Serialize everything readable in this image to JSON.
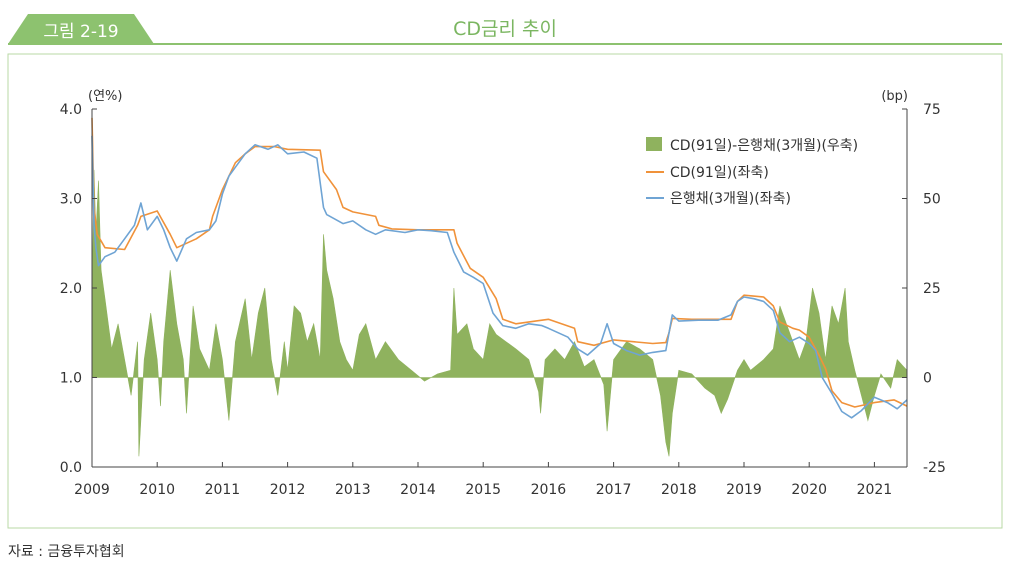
{
  "header": {
    "figure_label": "그림 2-19",
    "title": "CD금리 추이"
  },
  "source": "자료 : 금융투자협회",
  "colors": {
    "header_green": "#8dc26f",
    "title_green": "#7bb661",
    "frame": "#b9d9a6",
    "spread_fill": "#8fb25e",
    "cd_line": "#f0923a",
    "bank_line": "#6fa4d4"
  },
  "chart_data": {
    "type": "line",
    "title": "CD금리 추이",
    "y_left": {
      "unit": "(연%)",
      "range": [
        0.0,
        4.0
      ],
      "ticks": [
        "4.0",
        "3.0",
        "2.0",
        "1.0",
        "0.0"
      ]
    },
    "y_right": {
      "unit": "(bp)",
      "range": [
        -25,
        75
      ],
      "ticks": [
        "75",
        "50",
        "25",
        "0",
        "-25"
      ]
    },
    "x": {
      "range": [
        2009.0,
        2021.5
      ],
      "ticks": [
        "2009",
        "2010",
        "2011",
        "2012",
        "2013",
        "2014",
        "2015",
        "2016",
        "2017",
        "2018",
        "2019",
        "2020",
        "2021"
      ]
    },
    "grid": false,
    "legend_position": "top-right",
    "legend": [
      "CD(91일)-은행채(3개월)(우축)",
      "CD(91일)(좌축)",
      "은행채(3개월)(좌축)"
    ],
    "series": [
      {
        "name": "CD(91일)(좌축)",
        "axis": "left",
        "kind": "line",
        "points": [
          [
            2009.0,
            3.9
          ],
          [
            2009.03,
            2.9
          ],
          [
            2009.08,
            2.6
          ],
          [
            2009.2,
            2.45
          ],
          [
            2009.5,
            2.43
          ],
          [
            2009.7,
            2.7
          ],
          [
            2009.75,
            2.8
          ],
          [
            2010.0,
            2.86
          ],
          [
            2010.2,
            2.6
          ],
          [
            2010.3,
            2.45
          ],
          [
            2010.6,
            2.55
          ],
          [
            2010.8,
            2.65
          ],
          [
            2010.85,
            2.8
          ],
          [
            2011.0,
            3.1
          ],
          [
            2011.2,
            3.4
          ],
          [
            2011.35,
            3.5
          ],
          [
            2011.5,
            3.58
          ],
          [
            2011.8,
            3.58
          ],
          [
            2012.0,
            3.55
          ],
          [
            2012.5,
            3.54
          ],
          [
            2012.55,
            3.3
          ],
          [
            2012.75,
            3.1
          ],
          [
            2012.85,
            2.9
          ],
          [
            2013.0,
            2.85
          ],
          [
            2013.35,
            2.8
          ],
          [
            2013.4,
            2.7
          ],
          [
            2013.6,
            2.66
          ],
          [
            2014.0,
            2.65
          ],
          [
            2014.3,
            2.65
          ],
          [
            2014.55,
            2.65
          ],
          [
            2014.6,
            2.5
          ],
          [
            2014.8,
            2.22
          ],
          [
            2015.0,
            2.12
          ],
          [
            2015.2,
            1.88
          ],
          [
            2015.3,
            1.65
          ],
          [
            2015.5,
            1.6
          ],
          [
            2015.8,
            1.63
          ],
          [
            2016.0,
            1.65
          ],
          [
            2016.4,
            1.55
          ],
          [
            2016.45,
            1.4
          ],
          [
            2016.7,
            1.36
          ],
          [
            2017.0,
            1.42
          ],
          [
            2017.3,
            1.4
          ],
          [
            2017.6,
            1.38
          ],
          [
            2017.8,
            1.39
          ],
          [
            2017.85,
            1.5
          ],
          [
            2017.9,
            1.66
          ],
          [
            2018.2,
            1.65
          ],
          [
            2018.5,
            1.65
          ],
          [
            2018.8,
            1.65
          ],
          [
            2018.9,
            1.85
          ],
          [
            2019.0,
            1.92
          ],
          [
            2019.3,
            1.9
          ],
          [
            2019.45,
            1.8
          ],
          [
            2019.55,
            1.62
          ],
          [
            2019.75,
            1.55
          ],
          [
            2019.85,
            1.53
          ],
          [
            2020.0,
            1.45
          ],
          [
            2020.15,
            1.25
          ],
          [
            2020.25,
            1.1
          ],
          [
            2020.35,
            0.85
          ],
          [
            2020.5,
            0.72
          ],
          [
            2020.7,
            0.67
          ],
          [
            2021.0,
            0.72
          ],
          [
            2021.3,
            0.75
          ],
          [
            2021.5,
            0.68
          ]
        ]
      },
      {
        "name": "은행채(3개월)(좌축)",
        "axis": "left",
        "kind": "line",
        "points": [
          [
            2009.0,
            3.7
          ],
          [
            2009.03,
            2.7
          ],
          [
            2009.06,
            2.45
          ],
          [
            2009.1,
            2.25
          ],
          [
            2009.2,
            2.35
          ],
          [
            2009.35,
            2.4
          ],
          [
            2009.5,
            2.55
          ],
          [
            2009.65,
            2.7
          ],
          [
            2009.75,
            2.95
          ],
          [
            2009.85,
            2.65
          ],
          [
            2010.0,
            2.8
          ],
          [
            2010.1,
            2.65
          ],
          [
            2010.2,
            2.45
          ],
          [
            2010.3,
            2.3
          ],
          [
            2010.45,
            2.55
          ],
          [
            2010.6,
            2.62
          ],
          [
            2010.8,
            2.65
          ],
          [
            2010.9,
            2.75
          ],
          [
            2011.0,
            3.05
          ],
          [
            2011.1,
            3.25
          ],
          [
            2011.2,
            3.35
          ],
          [
            2011.35,
            3.5
          ],
          [
            2011.5,
            3.6
          ],
          [
            2011.7,
            3.55
          ],
          [
            2011.85,
            3.6
          ],
          [
            2012.0,
            3.5
          ],
          [
            2012.25,
            3.52
          ],
          [
            2012.45,
            3.45
          ],
          [
            2012.55,
            2.9
          ],
          [
            2012.6,
            2.82
          ],
          [
            2012.85,
            2.72
          ],
          [
            2013.0,
            2.75
          ],
          [
            2013.2,
            2.65
          ],
          [
            2013.35,
            2.6
          ],
          [
            2013.5,
            2.65
          ],
          [
            2013.8,
            2.62
          ],
          [
            2014.0,
            2.65
          ],
          [
            2014.2,
            2.64
          ],
          [
            2014.45,
            2.62
          ],
          [
            2014.55,
            2.4
          ],
          [
            2014.7,
            2.18
          ],
          [
            2014.85,
            2.12
          ],
          [
            2015.0,
            2.05
          ],
          [
            2015.15,
            1.72
          ],
          [
            2015.3,
            1.58
          ],
          [
            2015.5,
            1.55
          ],
          [
            2015.7,
            1.6
          ],
          [
            2015.9,
            1.58
          ],
          [
            2016.0,
            1.55
          ],
          [
            2016.3,
            1.45
          ],
          [
            2016.45,
            1.32
          ],
          [
            2016.6,
            1.25
          ],
          [
            2016.8,
            1.38
          ],
          [
            2016.9,
            1.6
          ],
          [
            2017.0,
            1.38
          ],
          [
            2017.2,
            1.3
          ],
          [
            2017.4,
            1.25
          ],
          [
            2017.6,
            1.28
          ],
          [
            2017.8,
            1.3
          ],
          [
            2017.9,
            1.7
          ],
          [
            2018.0,
            1.63
          ],
          [
            2018.3,
            1.64
          ],
          [
            2018.6,
            1.64
          ],
          [
            2018.8,
            1.7
          ],
          [
            2018.9,
            1.85
          ],
          [
            2019.0,
            1.9
          ],
          [
            2019.15,
            1.88
          ],
          [
            2019.3,
            1.85
          ],
          [
            2019.45,
            1.75
          ],
          [
            2019.55,
            1.5
          ],
          [
            2019.7,
            1.4
          ],
          [
            2019.85,
            1.45
          ],
          [
            2020.0,
            1.38
          ],
          [
            2020.1,
            1.3
          ],
          [
            2020.2,
            1.0
          ],
          [
            2020.35,
            0.82
          ],
          [
            2020.5,
            0.62
          ],
          [
            2020.65,
            0.55
          ],
          [
            2020.8,
            0.63
          ],
          [
            2021.0,
            0.78
          ],
          [
            2021.2,
            0.72
          ],
          [
            2021.35,
            0.65
          ],
          [
            2021.5,
            0.75
          ]
        ]
      },
      {
        "name": "CD(91일)-은행채(3개월)(우축)",
        "axis": "right",
        "kind": "area",
        "points": [
          [
            2009.0,
            20
          ],
          [
            2009.03,
            58
          ],
          [
            2009.06,
            40
          ],
          [
            2009.1,
            55
          ],
          [
            2009.14,
            30
          ],
          [
            2009.2,
            22
          ],
          [
            2009.3,
            8
          ],
          [
            2009.4,
            15
          ],
          [
            2009.5,
            5
          ],
          [
            2009.6,
            -5
          ],
          [
            2009.7,
            10
          ],
          [
            2009.72,
            -22
          ],
          [
            2009.8,
            5
          ],
          [
            2009.9,
            18
          ],
          [
            2010.0,
            5
          ],
          [
            2010.05,
            -8
          ],
          [
            2010.1,
            10
          ],
          [
            2010.2,
            30
          ],
          [
            2010.3,
            15
          ],
          [
            2010.4,
            5
          ],
          [
            2010.45,
            -10
          ],
          [
            2010.55,
            20
          ],
          [
            2010.65,
            8
          ],
          [
            2010.8,
            2
          ],
          [
            2010.9,
            15
          ],
          [
            2011.0,
            5
          ],
          [
            2011.1,
            -12
          ],
          [
            2011.2,
            10
          ],
          [
            2011.35,
            22
          ],
          [
            2011.45,
            5
          ],
          [
            2011.55,
            18
          ],
          [
            2011.65,
            25
          ],
          [
            2011.75,
            5
          ],
          [
            2011.85,
            -5
          ],
          [
            2011.95,
            10
          ],
          [
            2012.0,
            2
          ],
          [
            2012.1,
            20
          ],
          [
            2012.2,
            18
          ],
          [
            2012.3,
            10
          ],
          [
            2012.4,
            15
          ],
          [
            2012.5,
            5
          ],
          [
            2012.55,
            40
          ],
          [
            2012.6,
            30
          ],
          [
            2012.7,
            22
          ],
          [
            2012.8,
            10
          ],
          [
            2012.9,
            5
          ],
          [
            2013.0,
            2
          ],
          [
            2013.1,
            12
          ],
          [
            2013.2,
            15
          ],
          [
            2013.35,
            5
          ],
          [
            2013.5,
            10
          ],
          [
            2013.7,
            5
          ],
          [
            2013.9,
            2
          ],
          [
            2014.1,
            -1
          ],
          [
            2014.3,
            1
          ],
          [
            2014.5,
            2
          ],
          [
            2014.55,
            25
          ],
          [
            2014.6,
            12
          ],
          [
            2014.75,
            15
          ],
          [
            2014.85,
            8
          ],
          [
            2015.0,
            5
          ],
          [
            2015.1,
            15
          ],
          [
            2015.2,
            12
          ],
          [
            2015.35,
            10
          ],
          [
            2015.5,
            8
          ],
          [
            2015.7,
            5
          ],
          [
            2015.85,
            -4
          ],
          [
            2015.88,
            -10
          ],
          [
            2015.95,
            5
          ],
          [
            2016.1,
            8
          ],
          [
            2016.25,
            5
          ],
          [
            2016.4,
            10
          ],
          [
            2016.55,
            3
          ],
          [
            2016.7,
            5
          ],
          [
            2016.85,
            -2
          ],
          [
            2016.9,
            -15
          ],
          [
            2017.0,
            5
          ],
          [
            2017.2,
            10
          ],
          [
            2017.4,
            8
          ],
          [
            2017.6,
            5
          ],
          [
            2017.72,
            -5
          ],
          [
            2017.8,
            -18
          ],
          [
            2017.85,
            -22
          ],
          [
            2017.9,
            -10
          ],
          [
            2018.0,
            2
          ],
          [
            2018.2,
            1
          ],
          [
            2018.4,
            -3
          ],
          [
            2018.55,
            -5
          ],
          [
            2018.65,
            -10
          ],
          [
            2018.75,
            -6
          ],
          [
            2018.9,
            2
          ],
          [
            2019.0,
            5
          ],
          [
            2019.1,
            2
          ],
          [
            2019.3,
            5
          ],
          [
            2019.45,
            8
          ],
          [
            2019.55,
            20
          ],
          [
            2019.65,
            15
          ],
          [
            2019.75,
            10
          ],
          [
            2019.85,
            5
          ],
          [
            2019.95,
            10
          ],
          [
            2020.05,
            25
          ],
          [
            2020.15,
            18
          ],
          [
            2020.25,
            5
          ],
          [
            2020.35,
            20
          ],
          [
            2020.45,
            15
          ],
          [
            2020.55,
            25
          ],
          [
            2020.6,
            10
          ],
          [
            2020.7,
            2
          ],
          [
            2020.8,
            -5
          ],
          [
            2020.9,
            -12
          ],
          [
            2021.0,
            -5
          ],
          [
            2021.1,
            1
          ],
          [
            2021.25,
            -3
          ],
          [
            2021.35,
            5
          ],
          [
            2021.45,
            3
          ],
          [
            2021.5,
            2
          ]
        ]
      }
    ]
  }
}
